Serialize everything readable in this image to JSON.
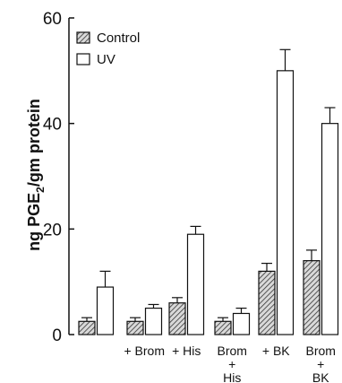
{
  "chart_data": {
    "type": "bar",
    "ylabel_main": "ng PGE",
    "ylabel_sub": "2",
    "ylabel_tail": "/gm protein",
    "ylim": [
      0,
      60
    ],
    "yticks": [
      0,
      20,
      40,
      60
    ],
    "grid": false,
    "legend_position": "top-left",
    "categories": [
      {
        "lines": [
          ""
        ]
      },
      {
        "lines": [
          "+ Brom"
        ]
      },
      {
        "lines": [
          "+ His"
        ]
      },
      {
        "lines": [
          "Brom",
          "+",
          "His"
        ]
      },
      {
        "lines": [
          "+ BK"
        ]
      },
      {
        "lines": [
          "Brom",
          "+",
          "BK"
        ]
      }
    ],
    "series": [
      {
        "name": "Control",
        "pattern": "hatched",
        "values": [
          2.5,
          2.5,
          6,
          2.5,
          12,
          14
        ],
        "errors": [
          0.7,
          0.7,
          1,
          0.7,
          1.5,
          2
        ]
      },
      {
        "name": "UV",
        "pattern": "open",
        "values": [
          9,
          5,
          19,
          4,
          50,
          40
        ],
        "errors": [
          3,
          0.7,
          1.5,
          1,
          4,
          3
        ]
      }
    ]
  }
}
